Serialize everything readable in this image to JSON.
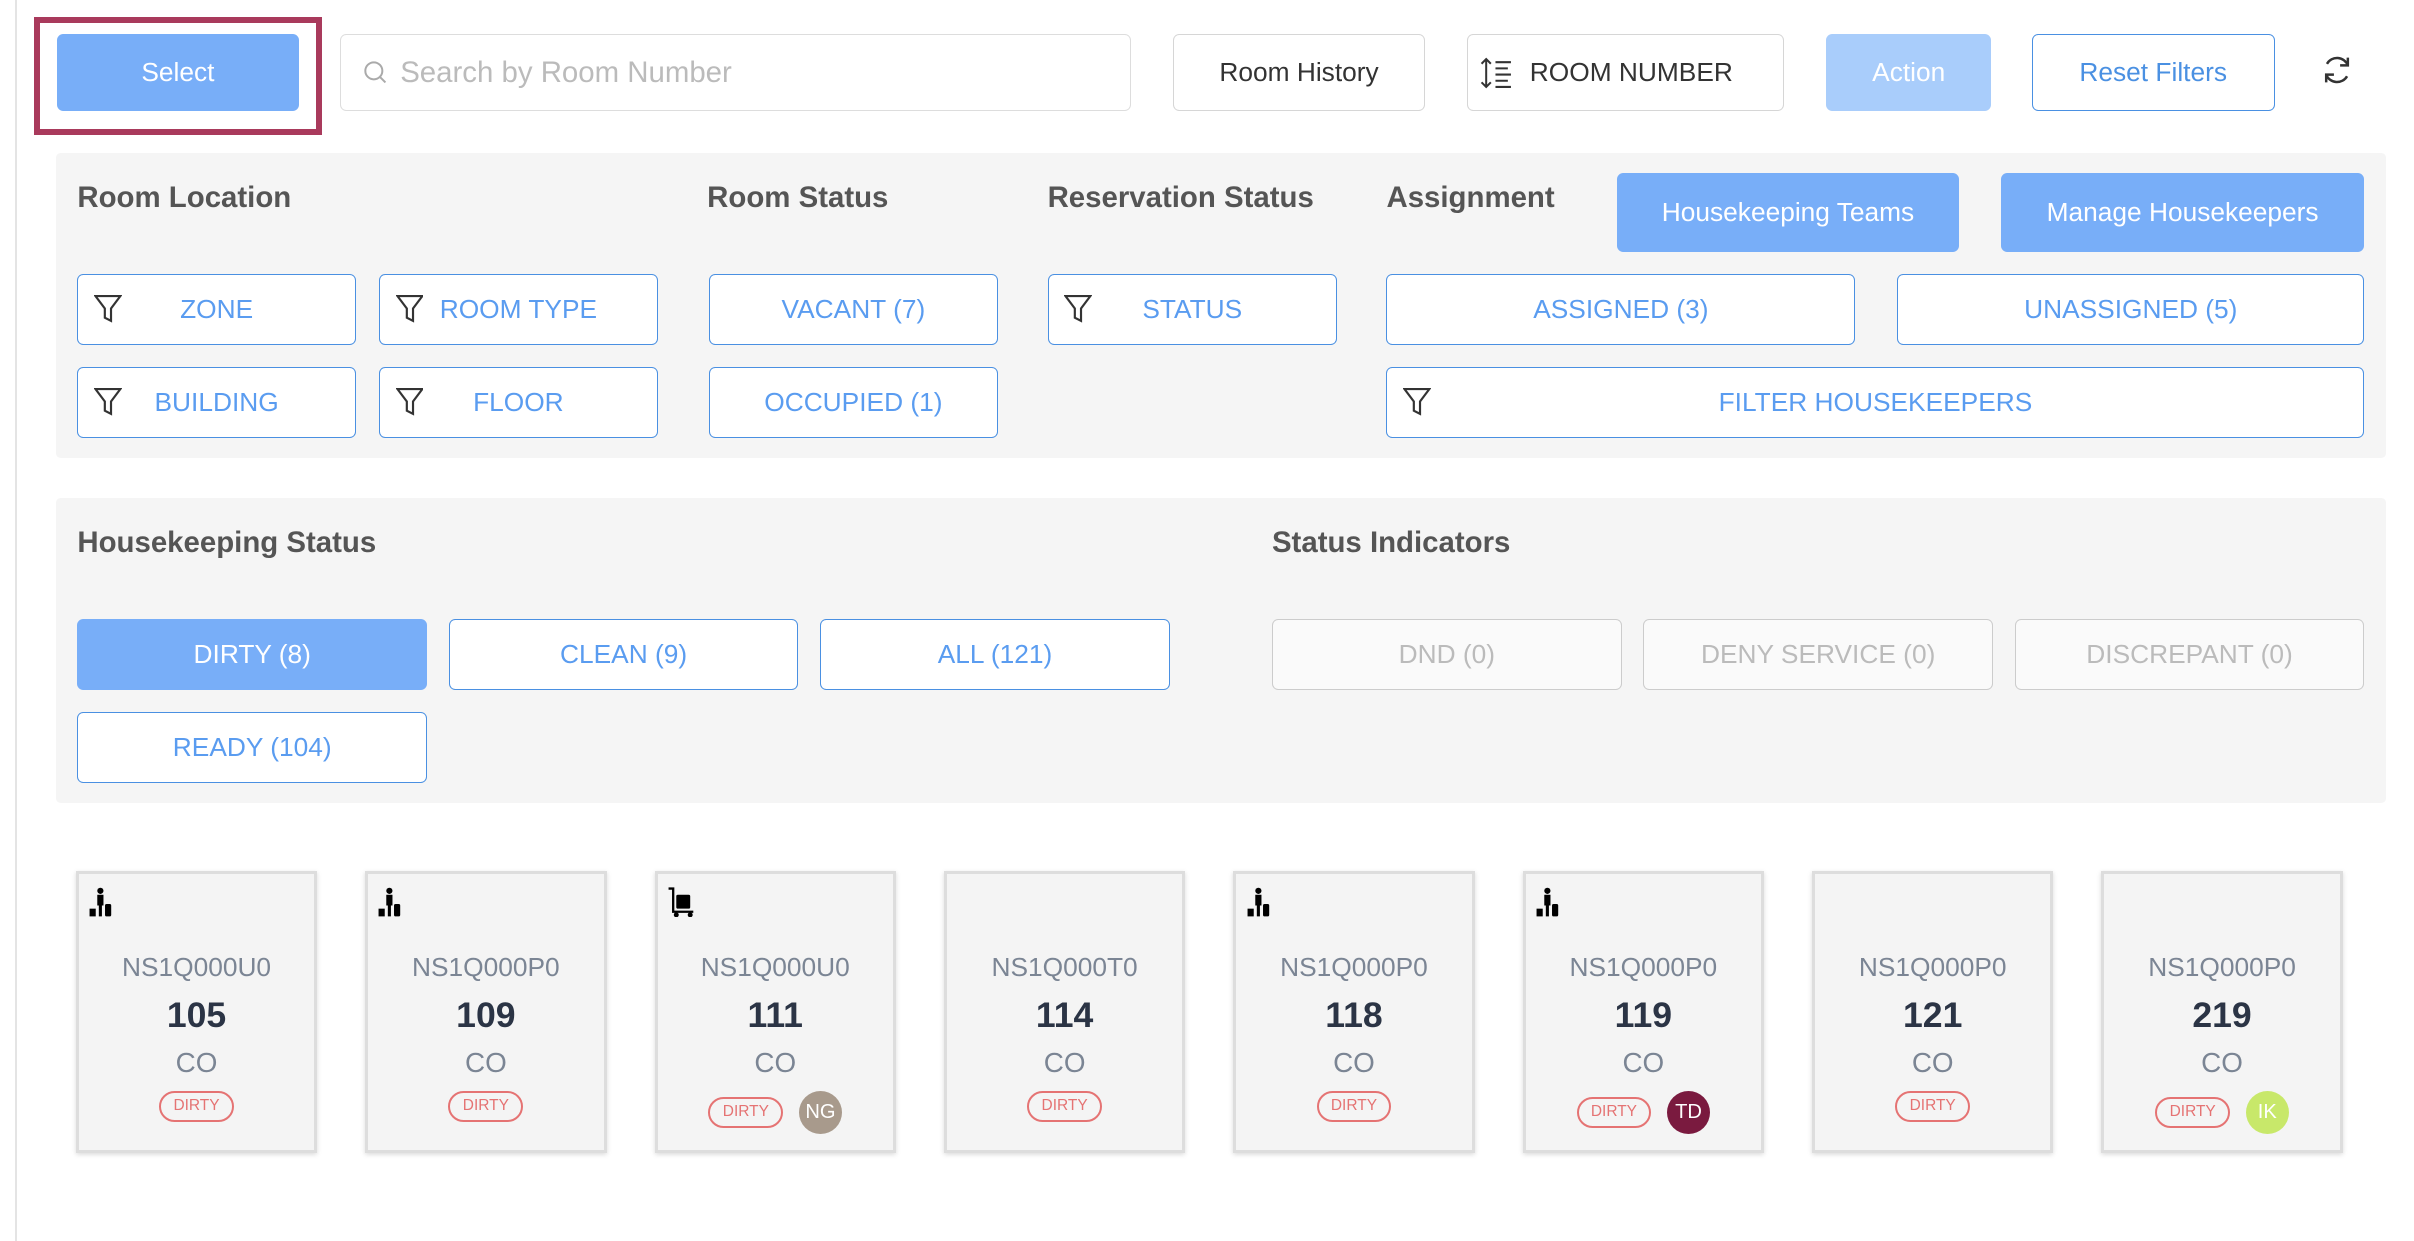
{
  "toolbar": {
    "select": "Select",
    "search_placeholder": "Search by Room Number",
    "room_history": "Room History",
    "sort": "ROOM NUMBER",
    "action": "Action",
    "reset": "Reset Filters"
  },
  "filters": {
    "room_location": "Room Location",
    "room_status": "Room Status",
    "reservation_status": "Reservation Status",
    "assignment": "Assignment",
    "zone": "ZONE",
    "room_type": "ROOM TYPE",
    "building": "BUILDING",
    "floor": "FLOOR",
    "vacant": "VACANT (7)",
    "occupied": "OCCUPIED (1)",
    "status": "STATUS",
    "housekeeping_teams": "Housekeeping Teams",
    "manage_housekeepers": "Manage Housekeepers",
    "assigned": "ASSIGNED (3)",
    "unassigned": "UNASSIGNED (5)",
    "filter_housekeepers": "FILTER HOUSEKEEPERS"
  },
  "housekeeping": {
    "title": "Housekeeping Status",
    "indicators_title": "Status Indicators",
    "dirty": "DIRTY (8)",
    "clean": "CLEAN (9)",
    "all": "ALL (121)",
    "ready": "READY (104)",
    "dnd": "DND (0)",
    "deny": "DENY SERVICE (0)",
    "discrepant": "DISCREPANT (0)"
  },
  "colors": {
    "primary": "#78aef8",
    "accent_outline": "#4a90e2",
    "highlight": "#a93a5c",
    "dirty": "#e57373"
  },
  "rooms": [
    {
      "code": "NS1Q000U0",
      "number": "105",
      "status": "CO",
      "hk": "DIRTY",
      "icon": "guest-luggage-icon",
      "avatar": null
    },
    {
      "code": "NS1Q000P0",
      "number": "109",
      "status": "CO",
      "hk": "DIRTY",
      "icon": "guest-luggage-icon",
      "avatar": null
    },
    {
      "code": "NS1Q000U0",
      "number": "111",
      "status": "CO",
      "hk": "DIRTY",
      "icon": "luggage-cart-icon",
      "avatar": {
        "initials": "NG",
        "color": "#a89a8c"
      }
    },
    {
      "code": "NS1Q000T0",
      "number": "114",
      "status": "CO",
      "hk": "DIRTY",
      "icon": null,
      "avatar": null
    },
    {
      "code": "NS1Q000P0",
      "number": "118",
      "status": "CO",
      "hk": "DIRTY",
      "icon": "guest-luggage-icon",
      "avatar": null
    },
    {
      "code": "NS1Q000P0",
      "number": "119",
      "status": "CO",
      "hk": "DIRTY",
      "icon": "guest-luggage-icon",
      "avatar": {
        "initials": "TD",
        "color": "#7a1a3f"
      }
    },
    {
      "code": "NS1Q000P0",
      "number": "121",
      "status": "CO",
      "hk": "DIRTY",
      "icon": null,
      "avatar": null
    },
    {
      "code": "NS1Q000P0",
      "number": "219",
      "status": "CO",
      "hk": "DIRTY",
      "icon": null,
      "avatar": {
        "initials": "IK",
        "color": "#c8e86a"
      }
    }
  ]
}
